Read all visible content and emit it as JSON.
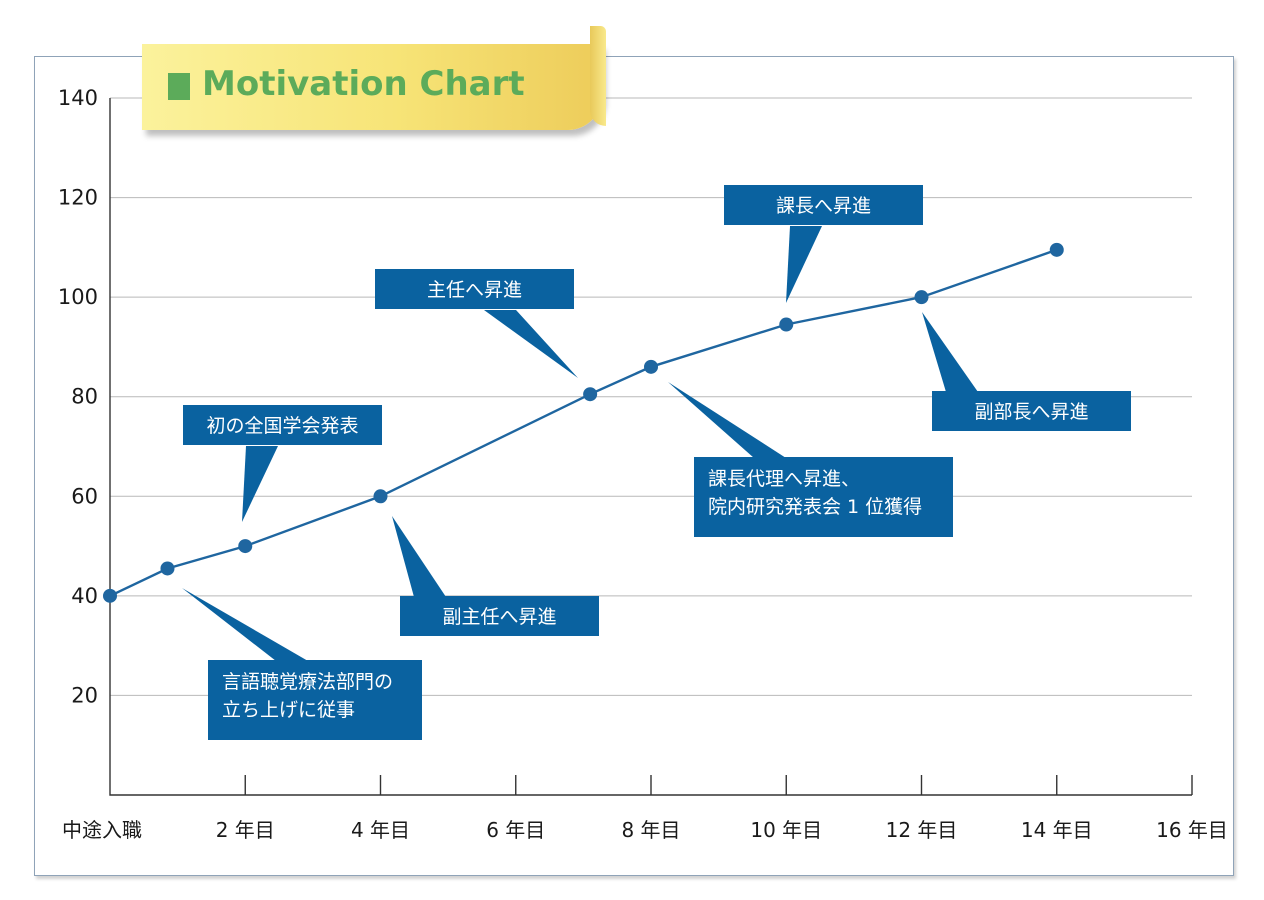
{
  "chart_data": {
    "type": "line",
    "title": "Motivation Chart",
    "xlabel": "",
    "ylabel": "",
    "xlim": [
      0,
      16
    ],
    "ylim": [
      0,
      140
    ],
    "yticks": [
      20,
      40,
      60,
      80,
      100,
      120,
      140
    ],
    "xticks": [
      {
        "x": 0,
        "label": "中途入職"
      },
      {
        "x": 2,
        "label": "2 年目"
      },
      {
        "x": 4,
        "label": "4 年目"
      },
      {
        "x": 6,
        "label": "6 年目"
      },
      {
        "x": 8,
        "label": "8 年目"
      },
      {
        "x": 10,
        "label": "10 年目"
      },
      {
        "x": 12,
        "label": "12 年目"
      },
      {
        "x": 14,
        "label": "14 年目"
      },
      {
        "x": 16,
        "label": "16 年目"
      }
    ],
    "grid": true,
    "series": [
      {
        "color": "#1f66a0",
        "points": [
          {
            "x": 0,
            "y": 40
          },
          {
            "x": 0.85,
            "y": 45.5
          },
          {
            "x": 2,
            "y": 50
          },
          {
            "x": 4,
            "y": 60
          },
          {
            "x": 7.1,
            "y": 80.5
          },
          {
            "x": 8,
            "y": 86
          },
          {
            "x": 10,
            "y": 94.5
          },
          {
            "x": 12,
            "y": 100
          },
          {
            "x": 14,
            "y": 109.5
          }
        ]
      }
    ],
    "annotations": [
      {
        "lines": [
          "言語聴覚療法部門の",
          "立ち上げに従事"
        ],
        "point_index": 1
      },
      {
        "lines": [
          "初の全国学会発表"
        ],
        "point_index": 2
      },
      {
        "lines": [
          "副主任へ昇進"
        ],
        "point_index": 3
      },
      {
        "lines": [
          "主任へ昇進"
        ],
        "point_index": 4
      },
      {
        "lines": [
          "課長代理へ昇進、",
          "院内研究発表会 1 位獲得"
        ],
        "point_index": 5
      },
      {
        "lines": [
          "課長へ昇進"
        ],
        "point_index": 6
      },
      {
        "lines": [
          "副部長へ昇進"
        ],
        "point_index": 7
      }
    ],
    "callout_color": "#0a62a0",
    "title_color": "#5cab5a"
  }
}
